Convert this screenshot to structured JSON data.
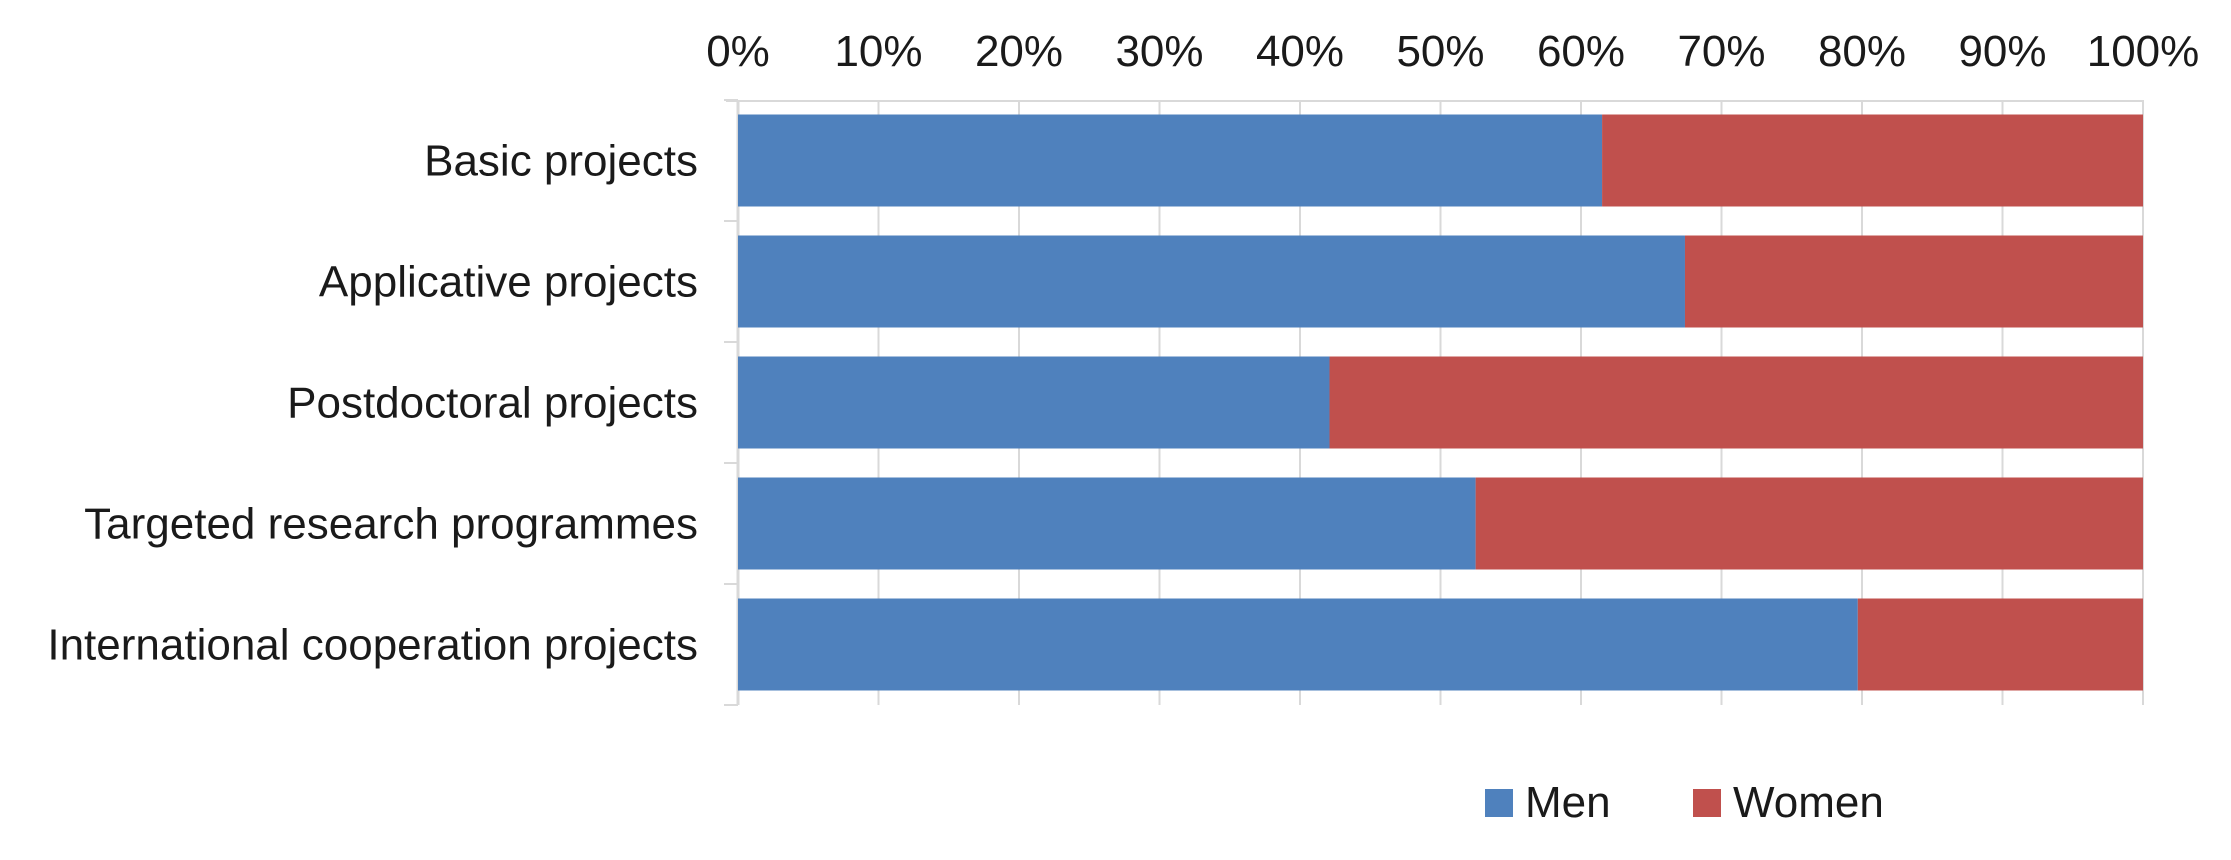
{
  "chart_data": {
    "type": "bar",
    "orientation": "horizontal",
    "stacked": "percent",
    "categories": [
      "Basic projects",
      "Applicative projects",
      "Postdoctoral projects",
      "Targeted research programmes",
      "International cooperation projects"
    ],
    "series": [
      {
        "name": "Men",
        "color": "#4f81bd",
        "values": [
          61.5,
          67.4,
          42.1,
          52.5,
          79.7
        ]
      },
      {
        "name": "Women",
        "color": "#c0504d",
        "values": [
          38.5,
          32.6,
          57.9,
          47.5,
          20.3
        ]
      }
    ],
    "xlim": [
      0,
      100
    ],
    "xticks": [
      "0%",
      "10%",
      "20%",
      "30%",
      "40%",
      "50%",
      "60%",
      "70%",
      "80%",
      "90%",
      "100%"
    ],
    "title": "",
    "xlabel": "",
    "ylabel": "",
    "grid": true,
    "legend_position": "bottom",
    "gridline_color": "#d9d9d9"
  }
}
